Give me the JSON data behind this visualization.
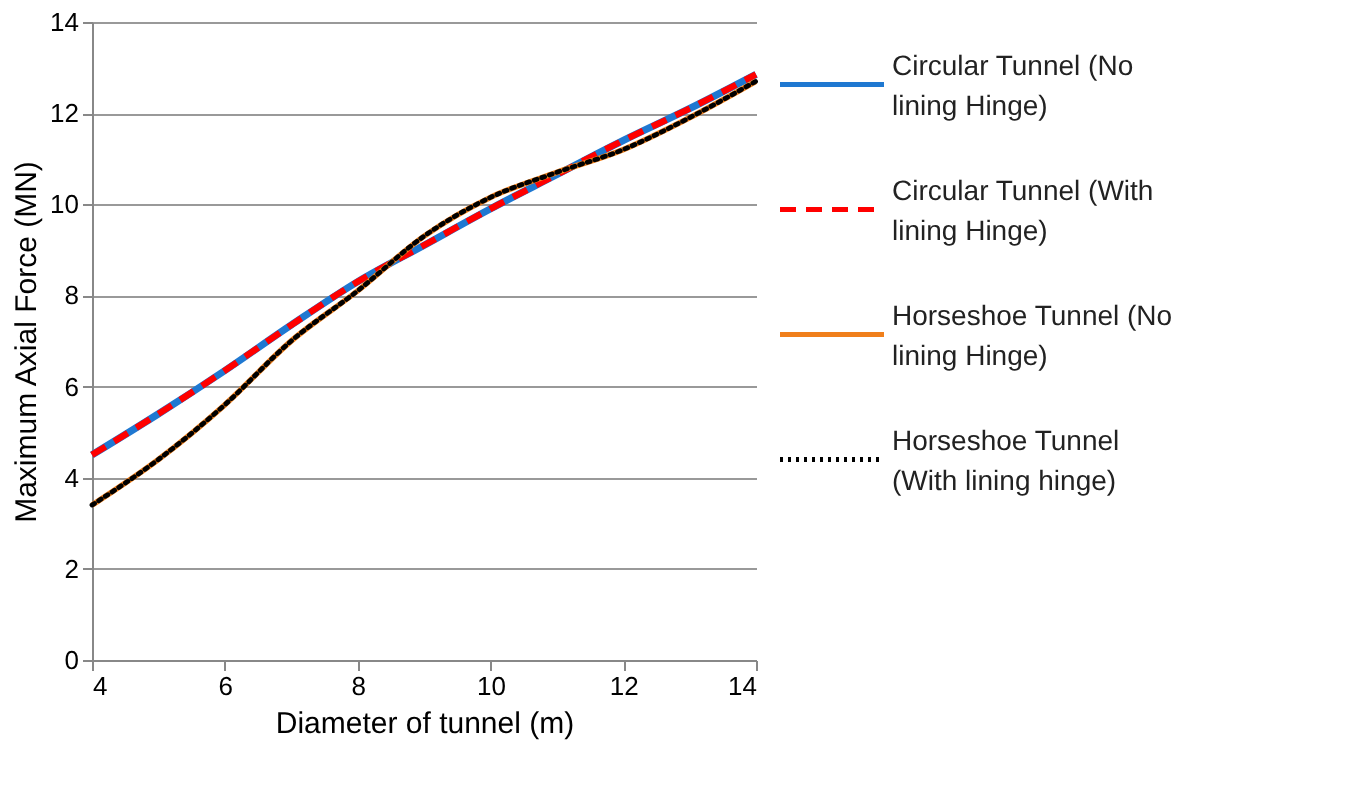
{
  "chart_data": {
    "type": "line",
    "xlabel": "Diameter of tunnel (m)",
    "ylabel": "Maximum Axial Force (MN)",
    "x": [
      4,
      5,
      6,
      7,
      8,
      9,
      10,
      11,
      12,
      13,
      14
    ],
    "series": [
      {
        "name": "Circular Tunnel (No lining Hinge)",
        "color": "#1f78d1",
        "line_style": "solid",
        "values": [
          4.5,
          5.4,
          6.35,
          7.35,
          8.3,
          9.1,
          9.9,
          10.65,
          11.4,
          12.1,
          12.85
        ]
      },
      {
        "name": "Circular Tunnel (With lining Hinge)",
        "color": "#ff0000",
        "line_style": "dashed",
        "values": [
          4.5,
          5.4,
          6.35,
          7.35,
          8.3,
          9.1,
          9.9,
          10.65,
          11.4,
          12.1,
          12.85
        ]
      },
      {
        "name": "Horseshoe Tunnel (No lining Hinge)",
        "color": "#f07f1b",
        "line_style": "solid",
        "values": [
          3.4,
          4.4,
          5.6,
          7.0,
          8.1,
          9.3,
          10.15,
          10.7,
          11.2,
          11.9,
          12.7
        ]
      },
      {
        "name": "Horseshoe Tunnel (With lining hinge)",
        "color": "#000000",
        "line_style": "dotted",
        "values": [
          3.4,
          4.4,
          5.6,
          7.0,
          8.1,
          9.3,
          10.15,
          10.7,
          11.2,
          11.9,
          12.7
        ]
      }
    ],
    "xlim": [
      4,
      14
    ],
    "xticks": [
      4,
      6,
      8,
      10,
      12,
      14
    ],
    "ylim": [
      0,
      14
    ],
    "yticks": [
      0,
      2,
      4,
      6,
      8,
      10,
      12,
      14
    ],
    "grid": "y",
    "legend": "right",
    "marker": "none"
  }
}
